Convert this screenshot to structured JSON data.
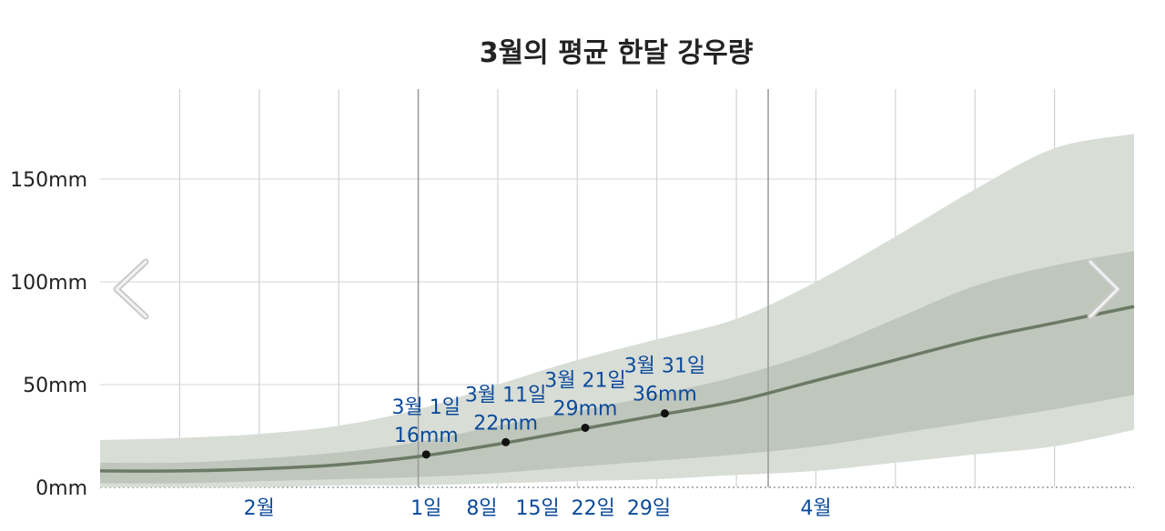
{
  "chart_data": {
    "type": "area",
    "title": "3월의 평균 한달 강우량",
    "ylabel": "",
    "xlabel": "",
    "unit": "mm",
    "ylim": [
      0,
      180
    ],
    "grid": true,
    "y_ticks": [
      {
        "value": 0,
        "label": "0mm"
      },
      {
        "value": 50,
        "label": "50mm"
      },
      {
        "value": 100,
        "label": "100mm"
      },
      {
        "value": 150,
        "label": "150mm"
      }
    ],
    "x_range": [
      -40,
      90
    ],
    "x_ticks": [
      {
        "day": -20,
        "label": "2월"
      },
      {
        "day": 1,
        "label": "1일"
      },
      {
        "day": 8,
        "label": "8일"
      },
      {
        "day": 15,
        "label": "15일"
      },
      {
        "day": 22,
        "label": "22일"
      },
      {
        "day": 29,
        "label": "29일"
      },
      {
        "day": 50,
        "label": "4월"
      }
    ],
    "minor_gridlines": [
      -30,
      -20,
      -10,
      0,
      10,
      20,
      30,
      40,
      50,
      60,
      70,
      80
    ],
    "month_boundaries": [
      0,
      44
    ],
    "series": [
      {
        "x": [
          -40,
          -30,
          -20,
          -10,
          0,
          10,
          20,
          30,
          40,
          50,
          60,
          70,
          80,
          90
        ],
        "median": [
          8,
          8,
          9,
          11,
          15,
          21,
          28,
          35,
          42,
          52,
          62,
          72,
          80,
          88
        ],
        "p25": [
          2,
          2,
          3,
          4,
          5,
          7,
          10,
          13,
          16,
          20,
          26,
          32,
          38,
          45
        ],
        "p75": [
          12,
          12,
          14,
          17,
          22,
          30,
          37,
          45,
          54,
          66,
          82,
          98,
          108,
          115
        ],
        "p10": [
          0,
          0,
          0,
          1,
          1,
          2,
          3,
          4,
          6,
          8,
          12,
          16,
          20,
          28
        ],
        "p90": [
          23,
          24,
          26,
          30,
          38,
          50,
          62,
          72,
          82,
          100,
          122,
          145,
          165,
          172
        ]
      }
    ],
    "annotations": [
      {
        "day": 1,
        "value": 16,
        "line1": "3월 1일",
        "line2": "16mm"
      },
      {
        "day": 11,
        "value": 22,
        "line1": "3월 11일",
        "line2": "22mm"
      },
      {
        "day": 21,
        "value": 29,
        "line1": "3월 21일",
        "line2": "29mm"
      },
      {
        "day": 31,
        "value": 36,
        "line1": "3월 31일",
        "line2": "36mm"
      }
    ],
    "colors": {
      "outer_band": "#d8ddd6",
      "inner_band": "#bfc6bc",
      "median_line": "#6b7a64",
      "grid": "#e4e4e4",
      "grid_vertical": "#d2d2d2",
      "month_line": "#9a9a9a",
      "text": "#222222",
      "accent": "#0b4a9b"
    }
  },
  "navigation": {
    "prev_icon": "chevron-left-icon",
    "next_icon": "chevron-right-icon"
  }
}
